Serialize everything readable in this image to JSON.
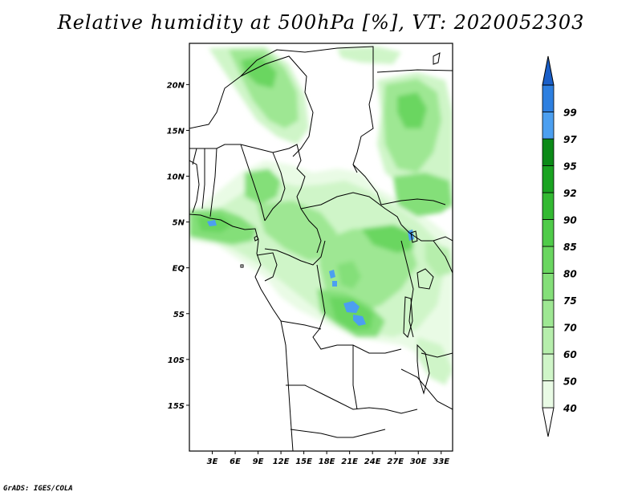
{
  "title": "Relative humidity at 500hPa [%], VT: 2020052303",
  "footer": "GrADS: IGES/COLA",
  "map": {
    "lon_range": [
      0,
      34.5
    ],
    "lat_range": [
      -20,
      24.5
    ],
    "lat_ticks": [
      {
        "value": 20,
        "label": "20N"
      },
      {
        "value": 15,
        "label": "15N"
      },
      {
        "value": 10,
        "label": "10N"
      },
      {
        "value": 5,
        "label": "5N"
      },
      {
        "value": 0,
        "label": "EQ"
      },
      {
        "value": -5,
        "label": "5S"
      },
      {
        "value": -10,
        "label": "10S"
      },
      {
        "value": -15,
        "label": "15S"
      }
    ],
    "lon_ticks": [
      {
        "value": 3,
        "label": "3E"
      },
      {
        "value": 6,
        "label": "6E"
      },
      {
        "value": 9,
        "label": "9E"
      },
      {
        "value": 12,
        "label": "12E"
      },
      {
        "value": 15,
        "label": "15E"
      },
      {
        "value": 18,
        "label": "18E"
      },
      {
        "value": 21,
        "label": "21E"
      },
      {
        "value": 24,
        "label": "24E"
      },
      {
        "value": 27,
        "label": "27E"
      },
      {
        "value": 30,
        "label": "30E"
      },
      {
        "value": 33,
        "label": "33E"
      }
    ]
  },
  "colorbar": {
    "levels": [
      {
        "label": "40",
        "color": "#e9fbe5"
      },
      {
        "label": "50",
        "color": "#cff5c8"
      },
      {
        "label": "60",
        "color": "#b6eeac"
      },
      {
        "label": "70",
        "color": "#9ee793"
      },
      {
        "label": "75",
        "color": "#84df79"
      },
      {
        "label": "80",
        "color": "#6ad660"
      },
      {
        "label": "85",
        "color": "#4fcb49"
      },
      {
        "label": "90",
        "color": "#33b932"
      },
      {
        "label": "92",
        "color": "#1aa321"
      },
      {
        "label": "95",
        "color": "#0b8a17"
      },
      {
        "label": "97",
        "color": "#4c9ff0"
      },
      {
        "label": "99",
        "color": "#2d7fe0"
      }
    ],
    "top_color": "#1a5fc8",
    "bottom_color": "#ffffff"
  }
}
